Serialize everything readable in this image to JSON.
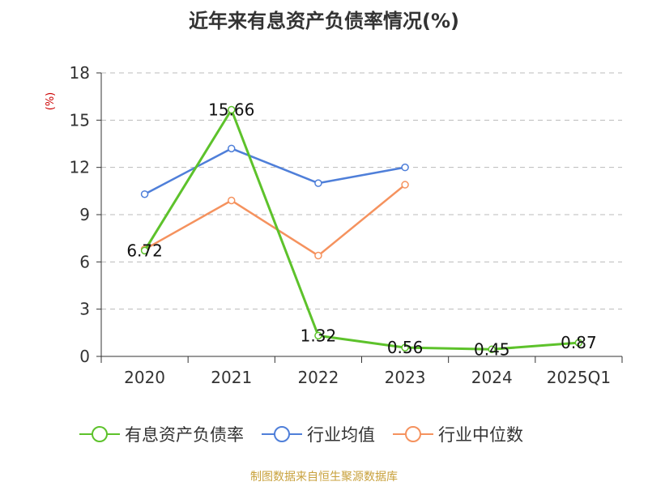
{
  "title": "近年来有息资产负债率情况(%)",
  "source": "制图数据来自恒生聚源数据库",
  "chart_data": {
    "type": "line",
    "title": "近年来有息资产负债率情况(%)",
    "ylabel": "(%)",
    "xlabel": "",
    "categories": [
      "2020",
      "2021",
      "2022",
      "2023",
      "2024",
      "2025Q1"
    ],
    "ylim": [
      0,
      18
    ],
    "yticks": [
      0,
      3,
      6,
      9,
      12,
      15,
      18
    ],
    "grid": true,
    "legend_position": "bottom",
    "series": [
      {
        "name": "有息资产负债率",
        "color": "#5dc22b",
        "values": [
          6.72,
          15.66,
          1.32,
          0.56,
          0.45,
          0.87
        ],
        "labels": [
          "6.72",
          "15.66",
          "1.32",
          "0.56",
          "0.45",
          "0.87"
        ]
      },
      {
        "name": "行业均值",
        "color": "#4f7fd9",
        "values": [
          10.3,
          13.2,
          11.0,
          12.0,
          null,
          null
        ]
      },
      {
        "name": "行业中位数",
        "color": "#f5925e",
        "values": [
          6.8,
          9.9,
          6.4,
          10.9,
          null,
          null
        ]
      }
    ]
  }
}
